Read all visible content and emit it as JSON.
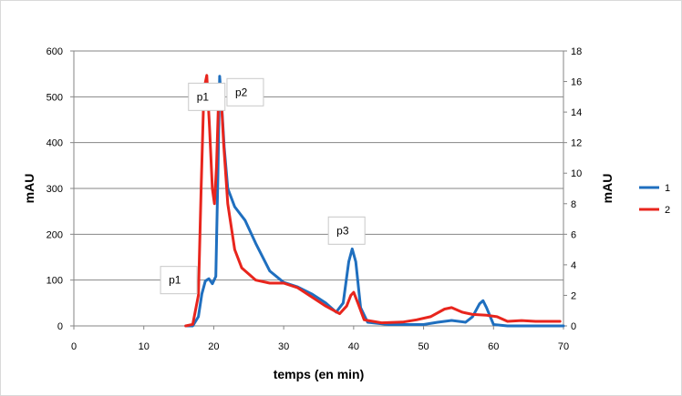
{
  "chart_data": {
    "type": "line",
    "title": "",
    "xlabel": "temps (en min)",
    "ylabel_left": "mAU",
    "ylabel_right": "mAU",
    "xlim": [
      0,
      70
    ],
    "ylim_left": [
      0,
      600
    ],
    "ylim_right": [
      0,
      18
    ],
    "x_ticks": [
      0,
      10,
      20,
      30,
      40,
      50,
      60,
      70
    ],
    "y_left_ticks": [
      0,
      100,
      200,
      300,
      400,
      500,
      600
    ],
    "y_right_ticks": [
      0,
      2,
      4,
      6,
      8,
      10,
      12,
      14,
      16,
      18
    ],
    "grid": "horizontal",
    "legend_position": "right",
    "series": [
      {
        "name": "1",
        "color": "#1f6fbf",
        "axis": "left",
        "points": [
          [
            16,
            0
          ],
          [
            17,
            0
          ],
          [
            17.8,
            20
          ],
          [
            18.3,
            70
          ],
          [
            18.8,
            98
          ],
          [
            19.3,
            103
          ],
          [
            19.8,
            92
          ],
          [
            20.3,
            108
          ],
          [
            20.6,
            330
          ],
          [
            20.85,
            545
          ],
          [
            21.1,
            490
          ],
          [
            21.5,
            390
          ],
          [
            22,
            300
          ],
          [
            23,
            260
          ],
          [
            24.5,
            230
          ],
          [
            26,
            180
          ],
          [
            28,
            120
          ],
          [
            30,
            95
          ],
          [
            32,
            85
          ],
          [
            34,
            70
          ],
          [
            36,
            50
          ],
          [
            37.5,
            30
          ],
          [
            38.5,
            50
          ],
          [
            39.3,
            140
          ],
          [
            39.8,
            168
          ],
          [
            40.3,
            140
          ],
          [
            41,
            40
          ],
          [
            42,
            8
          ],
          [
            45,
            3
          ],
          [
            50,
            3
          ],
          [
            52,
            8
          ],
          [
            54,
            12
          ],
          [
            56,
            8
          ],
          [
            57,
            20
          ],
          [
            58,
            48
          ],
          [
            58.5,
            55
          ],
          [
            59,
            40
          ],
          [
            60,
            3
          ],
          [
            62,
            0
          ],
          [
            70,
            0
          ]
        ]
      },
      {
        "name": "2",
        "color": "#e8251d",
        "axis": "right",
        "points": [
          [
            16,
            0
          ],
          [
            17,
            0.1
          ],
          [
            17.8,
            2.0
          ],
          [
            18.2,
            9.0
          ],
          [
            18.6,
            15.5
          ],
          [
            19,
            16.4
          ],
          [
            19.4,
            13.0
          ],
          [
            19.8,
            9.0
          ],
          [
            20.1,
            8.0
          ],
          [
            20.4,
            10.5
          ],
          [
            20.7,
            15.0
          ],
          [
            21,
            15.5
          ],
          [
            21.4,
            12.0
          ],
          [
            22,
            8.0
          ],
          [
            23,
            5.0
          ],
          [
            24,
            3.8
          ],
          [
            26,
            3.0
          ],
          [
            28,
            2.8
          ],
          [
            30,
            2.8
          ],
          [
            32,
            2.5
          ],
          [
            34,
            1.9
          ],
          [
            36,
            1.3
          ],
          [
            38,
            0.8
          ],
          [
            39,
            1.3
          ],
          [
            39.6,
            2.0
          ],
          [
            40,
            2.2
          ],
          [
            40.6,
            1.5
          ],
          [
            41.5,
            0.4
          ],
          [
            44,
            0.2
          ],
          [
            47,
            0.25
          ],
          [
            49,
            0.4
          ],
          [
            51,
            0.6
          ],
          [
            53,
            1.1
          ],
          [
            54,
            1.2
          ],
          [
            55.5,
            0.9
          ],
          [
            57,
            0.75
          ],
          [
            59,
            0.7
          ],
          [
            60.5,
            0.6
          ],
          [
            62,
            0.3
          ],
          [
            64,
            0.35
          ],
          [
            66,
            0.3
          ],
          [
            68,
            0.3
          ],
          [
            69.5,
            0.3
          ]
        ]
      }
    ],
    "annotations": [
      {
        "text": "p1",
        "x": 19,
        "y": 500,
        "axis": "left"
      },
      {
        "text": "p2",
        "x": 24.5,
        "y": 510,
        "axis": "left"
      },
      {
        "text": "p1",
        "x": 15,
        "y": 100,
        "axis": "left"
      },
      {
        "text": "p3",
        "x": 39,
        "y": 208,
        "axis": "left"
      }
    ]
  }
}
